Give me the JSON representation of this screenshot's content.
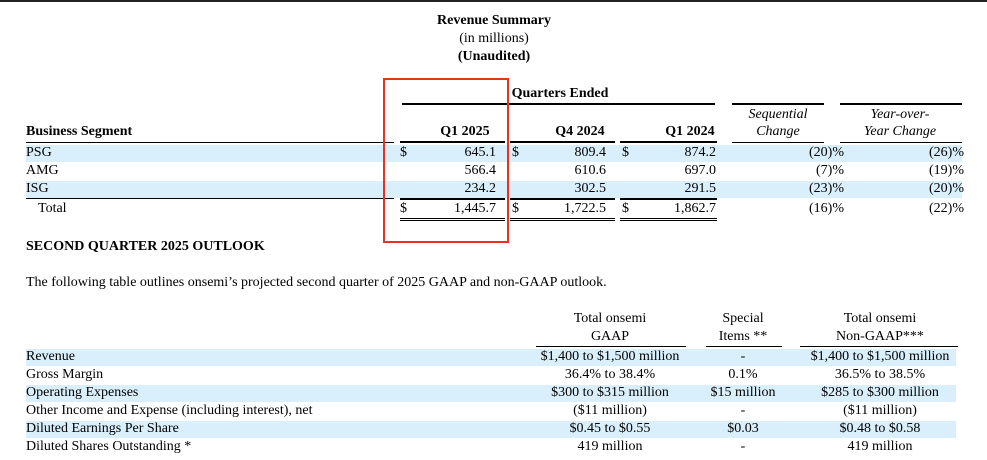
{
  "summary": {
    "title": "Revenue Summary",
    "subtitle1": "(in millions)",
    "subtitle2": "(Unaudited)",
    "quarters_ended": "Quarters Ended",
    "col_segment": "Business Segment",
    "col_q1_2025": "Q1 2025",
    "col_q4_2024": "Q4 2024",
    "col_q1_2024": "Q1 2024",
    "col_seq_1": "Sequential",
    "col_seq_2": "Change",
    "col_yoy_1": "Year-over-",
    "col_yoy_2": "Year Change",
    "currency_symbol": "$",
    "rows": [
      {
        "segment": "PSG",
        "q1_2025": "645.1",
        "q4_2024": "809.4",
        "q1_2024": "874.2",
        "seq": "(20)%",
        "yoy": "(26)%"
      },
      {
        "segment": "AMG",
        "q1_2025": "566.4",
        "q4_2024": "610.6",
        "q1_2024": "697.0",
        "seq": "(7)%",
        "yoy": "(19)%"
      },
      {
        "segment": "ISG",
        "q1_2025": "234.2",
        "q4_2024": "302.5",
        "q1_2024": "291.5",
        "seq": "(23)%",
        "yoy": "(20)%"
      }
    ],
    "total": {
      "segment": "Total",
      "q1_2025": "1,445.7",
      "q4_2024": "1,722.5",
      "q1_2024": "1,862.7",
      "seq": "(16)%",
      "yoy": "(22)%"
    }
  },
  "outlook": {
    "heading": "SECOND QUARTER 2025 OUTLOOK",
    "intro": "The following table outlines onsemi’s projected second quarter of 2025 GAAP and non-GAAP outlook.",
    "col_gaap_1": "Total onsemi",
    "col_gaap_2": "GAAP",
    "col_special_1": "Special",
    "col_special_2": "Items **",
    "col_nongaap_1": "Total onsemi",
    "col_nongaap_2": "Non-GAAP***",
    "rows": [
      {
        "label": "Revenue",
        "gaap": "$1,400 to $1,500 million",
        "special": "-",
        "nongaap": "$1,400 to $1,500 million"
      },
      {
        "label": "Gross Margin",
        "gaap": "36.4% to 38.4%",
        "special": "0.1%",
        "nongaap": "36.5% to 38.5%"
      },
      {
        "label": "Operating Expenses",
        "gaap": "$300 to $315 million",
        "special": "$15 million",
        "nongaap": "$285 to $300 million"
      },
      {
        "label": "Other Income and Expense (including interest), net",
        "gaap": "($11 million)",
        "special": "-",
        "nongaap": "($11 million)"
      },
      {
        "label": "Diluted Earnings Per Share",
        "gaap": "$0.45 to $0.55",
        "special": "$0.03",
        "nongaap": "$0.48 to $0.58"
      },
      {
        "label": "Diluted Shares Outstanding *",
        "gaap": "419 million",
        "special": "-",
        "nongaap": "419 million"
      }
    ]
  }
}
